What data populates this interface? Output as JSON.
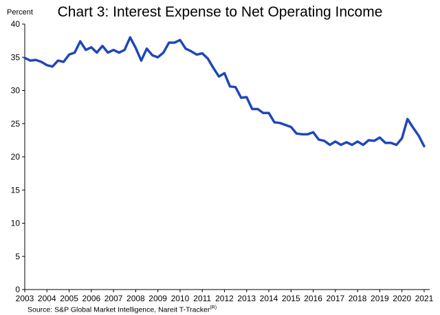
{
  "chart_data": {
    "type": "line",
    "title": "Chart 3: Interest Expense to Net Operating Income",
    "ylabel": "Percent",
    "xlabel": "",
    "ylim": [
      0,
      40
    ],
    "yticks": [
      0,
      5,
      10,
      15,
      20,
      25,
      30,
      35,
      40
    ],
    "xlim": [
      2003,
      2021.25
    ],
    "xticks": [
      "2003",
      "2004",
      "2005",
      "2006",
      "2007",
      "2008",
      "2009",
      "2010",
      "2011",
      "2012",
      "2013",
      "2014",
      "2015",
      "2016",
      "2017",
      "2018",
      "2019",
      "2020",
      "2021"
    ],
    "grid": false,
    "line_color": "#1f47b8",
    "series": [
      {
        "x": [
          2003.0,
          2003.25,
          2003.5,
          2003.75,
          2004.0,
          2004.25,
          2004.5,
          2004.75,
          2005.0,
          2005.25,
          2005.5,
          2005.75,
          2006.0,
          2006.25,
          2006.5,
          2006.75,
          2007.0,
          2007.25,
          2007.5,
          2007.75,
          2008.0,
          2008.25,
          2008.5,
          2008.75,
          2009.0,
          2009.25,
          2009.5,
          2009.75,
          2010.0,
          2010.25,
          2010.5,
          2010.75,
          2011.0,
          2011.25,
          2011.5,
          2011.75,
          2012.0,
          2012.25,
          2012.5,
          2012.75,
          2013.0,
          2013.25,
          2013.5,
          2013.75,
          2014.0,
          2014.25,
          2014.5,
          2014.75,
          2015.0,
          2015.25,
          2015.5,
          2015.75,
          2016.0,
          2016.25,
          2016.5,
          2016.75,
          2017.0,
          2017.25,
          2017.5,
          2017.75,
          2018.0,
          2018.25,
          2018.5,
          2018.75,
          2019.0,
          2019.25,
          2019.5,
          2019.75,
          2020.0,
          2020.25,
          2020.5,
          2020.75,
          2021.0
        ],
        "values": [
          34.9,
          34.5,
          34.6,
          34.3,
          33.8,
          33.6,
          34.5,
          34.3,
          35.4,
          35.7,
          37.4,
          36.1,
          36.5,
          35.7,
          36.7,
          35.7,
          36.1,
          35.7,
          36.1,
          38.0,
          36.4,
          34.5,
          36.3,
          35.3,
          35.0,
          35.7,
          37.2,
          37.2,
          37.6,
          36.3,
          35.9,
          35.4,
          35.6,
          34.8,
          33.4,
          32.1,
          32.6,
          30.6,
          30.5,
          28.9,
          29.0,
          27.2,
          27.2,
          26.6,
          26.6,
          25.2,
          25.1,
          24.8,
          24.5,
          23.5,
          23.4,
          23.4,
          23.7,
          22.6,
          22.4,
          21.8,
          22.3,
          21.8,
          22.2,
          21.8,
          22.3,
          21.8,
          22.5,
          22.4,
          22.9,
          22.1,
          22.1,
          21.8,
          22.8,
          25.7,
          24.4,
          23.2,
          21.6
        ]
      }
    ]
  },
  "source": {
    "text": "Source: S&P Global Market Intelligence, Nareit T-Tracker",
    "superscript": "(R)"
  }
}
